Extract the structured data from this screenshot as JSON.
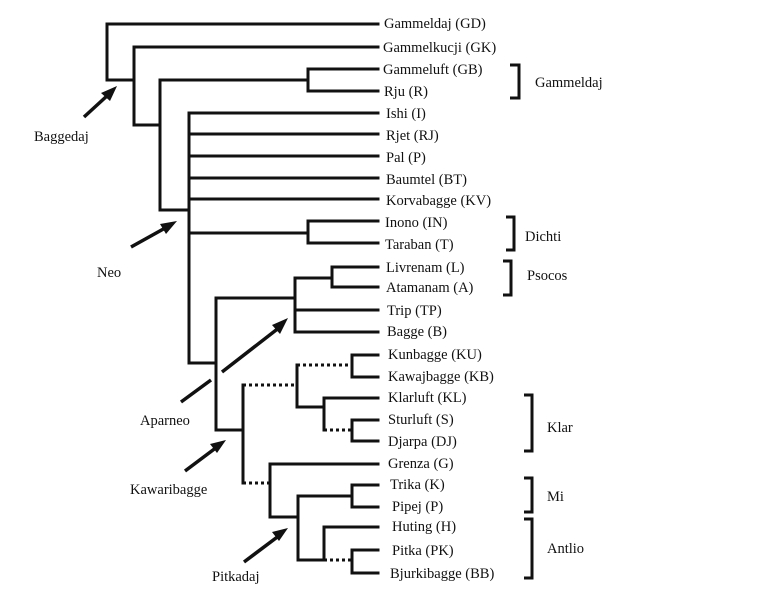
{
  "taxa": [
    "Gammeldaj (GD)",
    "Gammelkucji (GK)",
    "Gammeluft (GB)",
    "Rju (R)",
    "Ishi (I)",
    "Rjet (RJ)",
    "Pal (P)",
    "Baumtel (BT)",
    "Korvabagge (KV)",
    "Inono (IN)",
    "Taraban (T)",
    "Livrenam (L)",
    "Atamanam (A)",
    "Trip (TP)",
    "Bagge (B)",
    "Kunbagge (KU)",
    "Kawajbagge (KB)",
    "Klarluft (KL)",
    "Sturluft (S)",
    "Djarpa (DJ)",
    "Grenza (G)",
    "Trika (K)",
    "Pipej (P)",
    "Huting (H)",
    "Pitka (PK)",
    "Bjurkibagge (BB)"
  ],
  "groups": [
    "Gammeldaj",
    "Dichti",
    "Psocos",
    "Klar",
    "Mi",
    "Antlio"
  ],
  "nodes": [
    "Baggedaj",
    "Neo",
    "Aparneo",
    "Kawaribagge",
    "Pitkadaj"
  ]
}
